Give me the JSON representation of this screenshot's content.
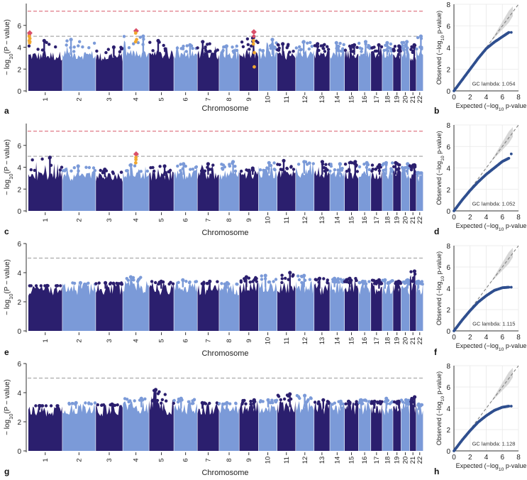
{
  "colors": {
    "dark": "#2b1f6e",
    "light": "#7b9ad8",
    "genome_wide_line": "#e07a86",
    "suggestive_line": "#aaaaaa",
    "hit_red": "#d9506a",
    "hit_orange": "#f0a830",
    "qq_points": "#2f4f8f",
    "qq_band": "#d8d8d8",
    "qq_diag": "#777777"
  },
  "labels": {
    "manhattan_ylabel": "− log10(P − value)",
    "manhattan_xlabel": "Chromosome",
    "qq_ylabel": "Observed (−log10 p-value)",
    "qq_xlabel": "Expected (−log10 p-value"
  },
  "chromosomes": [
    "1",
    "2",
    "3",
    "4",
    "5",
    "6",
    "7",
    "8",
    "9",
    "10",
    "11",
    "12",
    "13",
    "14",
    "15",
    "16",
    "17",
    "18",
    "19",
    "20",
    "21",
    "22"
  ],
  "chart_data": [
    {
      "panel": "a",
      "type": "scatter",
      "subtype": "manhattan",
      "xlabel": "Chromosome",
      "ylabel": "− log10(P − value)",
      "ylim": [
        0,
        8
      ],
      "yticks": [
        0,
        2,
        4,
        6
      ],
      "thresholds": [
        7.3,
        5.0
      ],
      "chrom_peaks": [
        4.6,
        4.7,
        4.0,
        5.0,
        4.6,
        4.2,
        4.5,
        4.1,
        4.9,
        4.7,
        4.3,
        4.5,
        4.3,
        4.4,
        4.2,
        4.5,
        4.2,
        4.4,
        4.1,
        4.5,
        4.2,
        5.0
      ],
      "chrom_base": [
        3.2,
        3.3,
        3.1,
        3.4,
        3.3,
        3.3,
        3.3,
        3.2,
        3.3,
        3.3,
        3.2,
        3.4,
        3.3,
        3.3,
        3.3,
        3.3,
        3.3,
        3.3,
        3.2,
        3.4,
        3.2,
        3.5
      ],
      "hits": [
        {
          "chr": "1",
          "p": 0.04,
          "values": [
            5.3,
            5.1,
            5.0,
            4.8,
            4.6,
            4.5,
            4.4
          ],
          "colors": [
            "red",
            "red",
            "orange",
            "orange",
            "orange",
            "orange",
            "orange"
          ]
        },
        {
          "chr": "4",
          "p": 0.5,
          "values": [
            5.5,
            5.3,
            4.7,
            4.5
          ],
          "colors": [
            "red",
            "orange",
            "orange",
            "orange"
          ]
        },
        {
          "chr": "9",
          "p": 0.75,
          "values": [
            5.4,
            5.0,
            4.6,
            4.3,
            3.5,
            2.2
          ],
          "colors": [
            "red",
            "red",
            "orange",
            "orange",
            "orange",
            "orange"
          ]
        }
      ]
    },
    {
      "panel": "b",
      "type": "scatter",
      "subtype": "qq",
      "xlabel": "Expected (−log10 p-value",
      "ylabel": "Observed (−log10 p-value)",
      "xlim": [
        0,
        8
      ],
      "ylim": [
        0,
        8
      ],
      "xticks": [
        0,
        2,
        4,
        6,
        8
      ],
      "yticks": [
        0,
        2,
        4,
        6,
        8
      ],
      "annotation": "GC lambda: 1.054",
      "curve": [
        [
          0,
          0
        ],
        [
          1,
          1.0
        ],
        [
          2,
          2.0
        ],
        [
          3,
          3.0
        ],
        [
          4,
          3.9
        ],
        [
          5,
          4.5
        ],
        [
          6,
          5.0
        ],
        [
          6.8,
          5.4
        ]
      ],
      "extra_point": [
        7.1,
        5.4
      ]
    },
    {
      "panel": "c",
      "type": "scatter",
      "subtype": "manhattan",
      "xlabel": "Chromosome",
      "ylabel": "− log10(P − value)",
      "ylim": [
        0,
        8
      ],
      "yticks": [
        0,
        2,
        4,
        6
      ],
      "thresholds": [
        7.3,
        5.0
      ],
      "chrom_peaks": [
        4.9,
        4.1,
        3.8,
        4.2,
        4.1,
        4.3,
        4.3,
        4.5,
        3.9,
        4.4,
        4.6,
        4.5,
        4.5,
        4.3,
        4.5,
        4.4,
        4.2,
        4.4,
        4.4,
        4.3,
        4.2,
        3.5
      ],
      "chrom_base": [
        3.2,
        3.2,
        3.1,
        3.3,
        3.2,
        3.3,
        3.3,
        3.3,
        3.3,
        3.4,
        3.4,
        3.4,
        3.3,
        3.3,
        3.3,
        3.4,
        3.3,
        3.3,
        3.3,
        3.3,
        3.3,
        3.1
      ],
      "hits": [
        {
          "chr": "4",
          "p": 0.5,
          "values": [
            5.2,
            4.9,
            4.7,
            4.4
          ],
          "colors": [
            "red",
            "orange",
            "orange",
            "orange"
          ]
        }
      ]
    },
    {
      "panel": "d",
      "type": "scatter",
      "subtype": "qq",
      "xlabel": "Expected (−log10 p-value",
      "ylabel": "Observed (−log10 p-value)",
      "xlim": [
        0,
        8
      ],
      "ylim": [
        0,
        8
      ],
      "xticks": [
        0,
        2,
        4,
        6,
        8
      ],
      "yticks": [
        0,
        2,
        4,
        6,
        8
      ],
      "annotation": "GC lambda: 1.052",
      "curve": [
        [
          0,
          0
        ],
        [
          1,
          1.0
        ],
        [
          2,
          1.9
        ],
        [
          3,
          2.7
        ],
        [
          4,
          3.4
        ],
        [
          5,
          4.0
        ],
        [
          6,
          4.6
        ],
        [
          6.8,
          4.9
        ]
      ],
      "extra_point": [
        7.1,
        5.3
      ]
    },
    {
      "panel": "e",
      "type": "scatter",
      "subtype": "manhattan",
      "xlabel": "Chromosome",
      "ylabel": "− log10(P − value)",
      "ylim": [
        0,
        6
      ],
      "yticks": [
        0,
        2,
        4,
        6
      ],
      "thresholds": [
        5.0
      ],
      "chrom_peaks": [
        3.1,
        3.3,
        3.3,
        3.7,
        3.4,
        3.5,
        3.4,
        3.3,
        3.7,
        3.8,
        4.0,
        3.8,
        3.6,
        3.6,
        3.6,
        3.4,
        3.5,
        3.5,
        3.4,
        3.5,
        4.1,
        3.4
      ],
      "chrom_base": [
        2.8,
        2.9,
        2.9,
        3.0,
        2.9,
        3.0,
        2.9,
        2.9,
        3.0,
        3.0,
        3.0,
        3.0,
        2.9,
        3.0,
        3.0,
        2.9,
        2.9,
        2.9,
        2.9,
        2.9,
        3.0,
        2.9
      ],
      "hits": []
    },
    {
      "panel": "f",
      "type": "scatter",
      "subtype": "qq",
      "xlabel": "Expected (−log10 p-value",
      "ylabel": "Observed (−log10 p-value)",
      "xlim": [
        0,
        8
      ],
      "ylim": [
        0,
        8
      ],
      "xticks": [
        0,
        2,
        4,
        6,
        8
      ],
      "yticks": [
        0,
        2,
        4,
        6,
        8
      ],
      "annotation": "GC lambda: 1.115",
      "curve": [
        [
          0,
          0
        ],
        [
          1,
          1.0
        ],
        [
          2,
          1.9
        ],
        [
          3,
          2.7
        ],
        [
          4,
          3.3
        ],
        [
          5,
          3.8
        ],
        [
          6,
          4.05
        ],
        [
          6.8,
          4.1
        ]
      ],
      "extra_point": [
        7.1,
        4.1
      ]
    },
    {
      "panel": "g",
      "type": "scatter",
      "subtype": "manhattan",
      "xlabel": "Chromosome",
      "ylabel": "− log10(P − value)",
      "ylim": [
        0,
        6
      ],
      "yticks": [
        0,
        2,
        4,
        6
      ],
      "thresholds": [
        5.0
      ],
      "chrom_peaks": [
        3.1,
        3.3,
        3.2,
        3.6,
        4.2,
        3.6,
        3.3,
        3.3,
        3.5,
        3.5,
        3.9,
        3.8,
        3.5,
        3.4,
        3.4,
        3.5,
        3.4,
        3.6,
        3.4,
        3.5,
        3.7,
        3.2
      ],
      "chrom_base": [
        2.8,
        2.9,
        2.8,
        3.0,
        2.9,
        2.9,
        2.9,
        2.9,
        2.9,
        3.0,
        3.0,
        3.0,
        2.9,
        2.9,
        2.9,
        2.9,
        2.9,
        2.9,
        2.9,
        2.9,
        3.0,
        2.8
      ],
      "hits": []
    },
    {
      "panel": "h",
      "type": "scatter",
      "subtype": "qq",
      "xlabel": "Expected (−log10 p-value",
      "ylabel": "Observed (−log10 p-value)",
      "xlim": [
        0,
        8
      ],
      "ylim": [
        0,
        8
      ],
      "xticks": [
        0,
        2,
        4,
        6,
        8
      ],
      "yticks": [
        0,
        2,
        4,
        6,
        8
      ],
      "annotation": "GC lambda: 1.128",
      "curve": [
        [
          0,
          0
        ],
        [
          1,
          1.0
        ],
        [
          2,
          1.9
        ],
        [
          3,
          2.7
        ],
        [
          4,
          3.3
        ],
        [
          5,
          3.8
        ],
        [
          6,
          4.1
        ],
        [
          6.8,
          4.2
        ]
      ],
      "extra_point": [
        7.1,
        4.2
      ]
    }
  ]
}
